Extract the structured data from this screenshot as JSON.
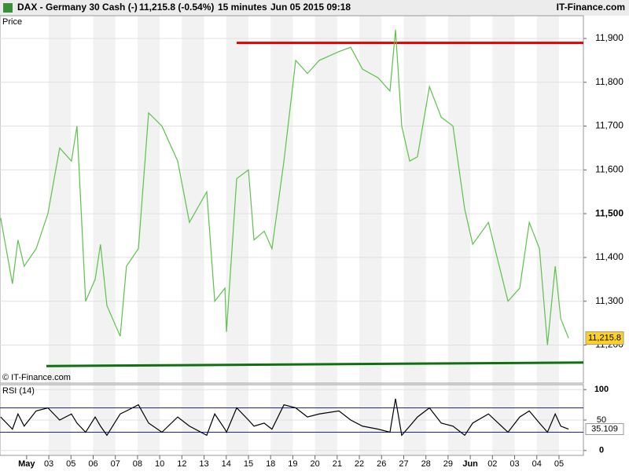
{
  "header": {
    "symbol": "DAX - Germany 30 Cash (-)",
    "quote": "11,215.8 (-0.54%)",
    "interval": "15 minutes",
    "timestamp": "Jun 05 2015 09:18",
    "brand": "IT-Finance.com"
  },
  "chart_data": [
    {
      "type": "line",
      "panel": "Price",
      "copyright": "© IT-Finance.com",
      "xlim": [
        -1.2,
        25.1
      ],
      "xticks": [
        {
          "value": 0,
          "label": "May"
        },
        {
          "value": 1,
          "label": "03"
        },
        {
          "value": 2,
          "label": "05"
        },
        {
          "value": 3,
          "label": "06"
        },
        {
          "value": 4,
          "label": "07"
        },
        {
          "value": 5,
          "label": "08"
        },
        {
          "value": 6,
          "label": "10"
        },
        {
          "value": 7,
          "label": "12"
        },
        {
          "value": 8,
          "label": "13"
        },
        {
          "value": 9,
          "label": "14"
        },
        {
          "value": 10,
          "label": "15"
        },
        {
          "value": 11,
          "label": "18"
        },
        {
          "value": 12,
          "label": "19"
        },
        {
          "value": 13,
          "label": "20"
        },
        {
          "value": 14,
          "label": "21"
        },
        {
          "value": 15,
          "label": "22"
        },
        {
          "value": 16,
          "label": "26"
        },
        {
          "value": 17,
          "label": "27"
        },
        {
          "value": 18,
          "label": "28"
        },
        {
          "value": 19,
          "label": "29"
        },
        {
          "value": 20,
          "label": "Jun"
        },
        {
          "value": 21,
          "label": "02"
        },
        {
          "value": 22,
          "label": "03"
        },
        {
          "value": 23,
          "label": "04"
        },
        {
          "value": 24,
          "label": "05"
        }
      ],
      "ylim": [
        11113,
        11952
      ],
      "yticks": [
        {
          "value": 11200,
          "label": "11,200"
        },
        {
          "value": 11300,
          "label": "11,300"
        },
        {
          "value": 11400,
          "label": "11,400"
        },
        {
          "value": 11500,
          "label": "11,500"
        },
        {
          "value": 11600,
          "label": "11,600"
        },
        {
          "value": 11700,
          "label": "11,700"
        },
        {
          "value": 11800,
          "label": "11,800"
        },
        {
          "value": 11900,
          "label": "11,900"
        }
      ],
      "series": [
        {
          "name": "DAX",
          "color": "#5cc24a",
          "x": [
            -1.17,
            -0.64,
            -0.39,
            -0.11,
            0.43,
            0.96,
            1.49,
            2.02,
            2.27,
            2.66,
            3.09,
            3.33,
            3.62,
            4.22,
            4.5,
            5.04,
            5.5,
            6.1,
            6.81,
            7.34,
            8.12,
            8.48,
            8.94,
            9.01,
            9.47,
            10,
            10.25,
            10.71,
            11.06,
            11.6,
            12.13,
            12.66,
            13.19,
            14.08,
            14.61,
            15.14,
            15.85,
            16.38,
            16.63,
            16.91,
            17.27,
            17.62,
            18.16,
            18.69,
            19.22,
            19.75,
            20.11,
            20.82,
            21.7,
            22.23,
            22.66,
            23.12,
            23.48,
            23.83,
            24.08,
            24.43
          ],
          "values": [
            11490,
            11340,
            11440,
            11380,
            11420,
            11500,
            11650,
            11620,
            11700,
            11300,
            11350,
            11430,
            11290,
            11220,
            11380,
            11420,
            11730,
            11700,
            11620,
            11480,
            11550,
            11300,
            11330,
            11230,
            11580,
            11600,
            11440,
            11460,
            11420,
            11620,
            11850,
            11820,
            11850,
            11870,
            11880,
            11830,
            11810,
            11780,
            11920,
            11700,
            11620,
            11630,
            11790,
            11720,
            11700,
            11510,
            11430,
            11480,
            11300,
            11330,
            11480,
            11420,
            11200,
            11380,
            11260,
            11215.8
          ]
        }
      ],
      "last": {
        "value": 11215.8,
        "label": "11,215.8",
        "color": "#ffd21f"
      },
      "lines": [
        {
          "color": "#e00000",
          "x": [
            9.47,
            25.1
          ],
          "values": [
            11890,
            11890
          ]
        },
        {
          "color": "#107010",
          "x": [
            0.89,
            25.1
          ],
          "values": [
            11152,
            11160
          ]
        }
      ]
    },
    {
      "type": "line",
      "panel": "RSI (14)",
      "ylim": [
        -8,
        108
      ],
      "yticks": [
        0,
        50,
        100
      ],
      "levels": [
        30,
        70
      ],
      "level_color": "#2020a0",
      "series": [
        {
          "name": "RSI",
          "color": "#000000",
          "x": [
            -1.17,
            -0.64,
            -0.39,
            -0.11,
            0.43,
            0.96,
            1.49,
            2.02,
            2.27,
            2.66,
            3.09,
            3.33,
            3.62,
            4.22,
            4.5,
            5.04,
            5.5,
            6.1,
            6.81,
            7.34,
            8.12,
            8.48,
            8.94,
            9.01,
            9.47,
            10,
            10.25,
            10.71,
            11.06,
            11.6,
            12.13,
            12.66,
            13.19,
            14.08,
            14.61,
            15.14,
            15.85,
            16.38,
            16.63,
            16.91,
            17.27,
            17.62,
            18.16,
            18.69,
            19.22,
            19.75,
            20.11,
            20.82,
            21.7,
            22.23,
            22.66,
            23.12,
            23.48,
            23.83,
            24.08,
            24.43
          ],
          "values": [
            55,
            35,
            60,
            40,
            65,
            70,
            50,
            60,
            45,
            30,
            55,
            40,
            25,
            60,
            65,
            75,
            45,
            30,
            55,
            40,
            25,
            60,
            35,
            30,
            70,
            50,
            40,
            45,
            35,
            75,
            70,
            55,
            60,
            65,
            50,
            40,
            35,
            30,
            85,
            25,
            40,
            55,
            70,
            45,
            40,
            25,
            45,
            60,
            30,
            55,
            65,
            45,
            30,
            60,
            40,
            35.109
          ]
        }
      ]
    }
  ]
}
